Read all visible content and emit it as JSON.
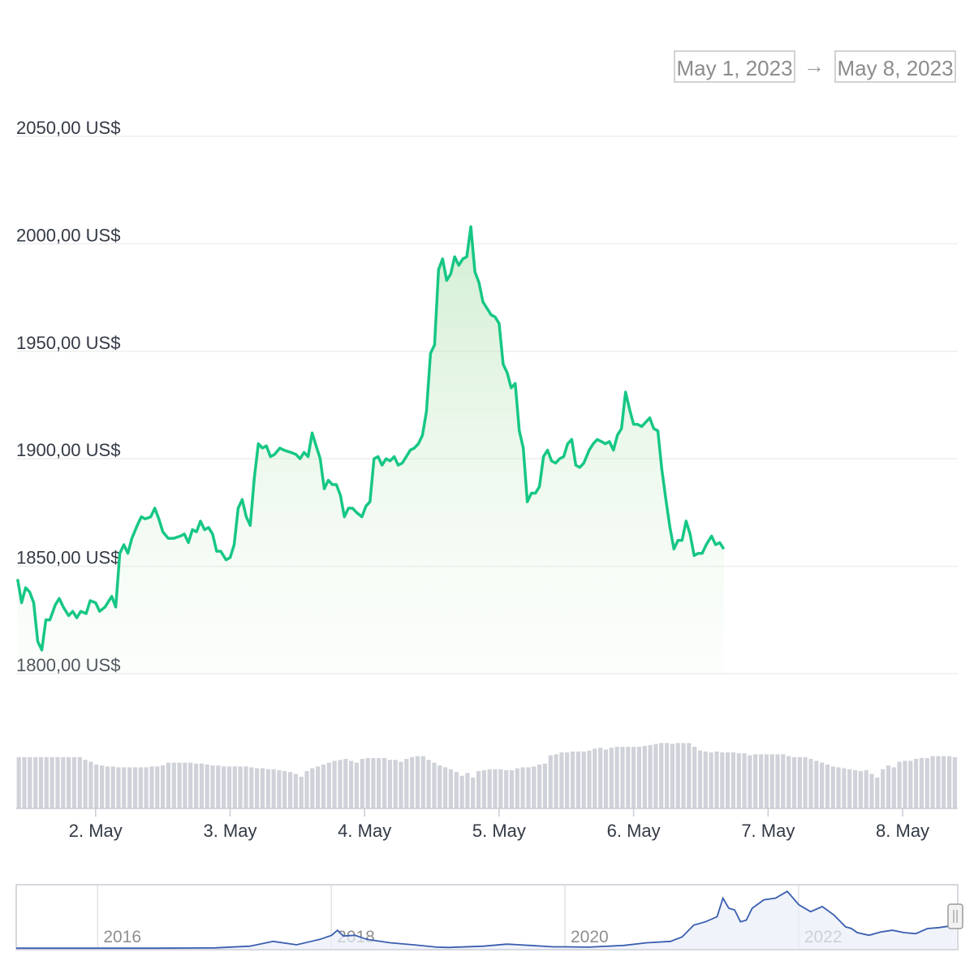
{
  "date_range": {
    "from": "May 1, 2023",
    "arrow": "→",
    "to": "May 8, 2023"
  },
  "colors": {
    "line": "#16c784",
    "fill": "#16c784",
    "volume": "#cfd2d8",
    "navigator": "#3a5eb0",
    "grid": "#eeeeee"
  },
  "chart_data": {
    "type": "area",
    "y_ticks": [
      "1800,00 US$",
      "1850,00 US$",
      "1900,00 US$",
      "1950,00 US$",
      "2000,00 US$",
      "2050,00 US$"
    ],
    "x_ticks": [
      "2. May",
      "3. May",
      "4. May",
      "5. May",
      "6. May",
      "7. May",
      "8. May"
    ],
    "ylim": [
      1800,
      2050
    ],
    "xlim_days": [
      1.41,
      8.41
    ],
    "grid": true,
    "price": [
      [
        1.42,
        1844
      ],
      [
        1.45,
        1833
      ],
      [
        1.48,
        1840
      ],
      [
        1.51,
        1838
      ],
      [
        1.54,
        1833
      ],
      [
        1.57,
        1815
      ],
      [
        1.6,
        1811
      ],
      [
        1.63,
        1825
      ],
      [
        1.66,
        1825
      ],
      [
        1.7,
        1832
      ],
      [
        1.73,
        1835
      ],
      [
        1.76,
        1831
      ],
      [
        1.8,
        1827
      ],
      [
        1.83,
        1829
      ],
      [
        1.86,
        1826
      ],
      [
        1.89,
        1829
      ],
      [
        1.93,
        1828
      ],
      [
        1.96,
        1834
      ],
      [
        2.0,
        1833
      ],
      [
        2.03,
        1829
      ],
      [
        2.07,
        1831
      ],
      [
        2.12,
        1836
      ],
      [
        2.15,
        1831
      ],
      [
        2.18,
        1856
      ],
      [
        2.21,
        1860
      ],
      [
        2.24,
        1856
      ],
      [
        2.27,
        1863
      ],
      [
        2.31,
        1869
      ],
      [
        2.34,
        1873
      ],
      [
        2.37,
        1872
      ],
      [
        2.41,
        1873
      ],
      [
        2.44,
        1877
      ],
      [
        2.47,
        1872
      ],
      [
        2.5,
        1866
      ],
      [
        2.54,
        1863
      ],
      [
        2.58,
        1863
      ],
      [
        2.63,
        1864
      ],
      [
        2.66,
        1865
      ],
      [
        2.69,
        1861
      ],
      [
        2.72,
        1867
      ],
      [
        2.75,
        1866
      ],
      [
        2.78,
        1871
      ],
      [
        2.81,
        1867
      ],
      [
        2.84,
        1868
      ],
      [
        2.87,
        1865
      ],
      [
        2.9,
        1857
      ],
      [
        2.93,
        1857
      ],
      [
        2.97,
        1853
      ],
      [
        3.0,
        1854
      ],
      [
        3.03,
        1860
      ],
      [
        3.06,
        1877
      ],
      [
        3.09,
        1881
      ],
      [
        3.12,
        1873
      ],
      [
        3.15,
        1869
      ],
      [
        3.18,
        1891
      ],
      [
        3.21,
        1907
      ],
      [
        3.24,
        1905
      ],
      [
        3.27,
        1906
      ],
      [
        3.3,
        1901
      ],
      [
        3.33,
        1902
      ],
      [
        3.37,
        1905
      ],
      [
        3.4,
        1904
      ],
      [
        3.45,
        1903
      ],
      [
        3.49,
        1902
      ],
      [
        3.52,
        1900
      ],
      [
        3.55,
        1903
      ],
      [
        3.58,
        1901
      ],
      [
        3.61,
        1912
      ],
      [
        3.64,
        1906
      ],
      [
        3.67,
        1900
      ],
      [
        3.7,
        1886
      ],
      [
        3.73,
        1890
      ],
      [
        3.76,
        1888
      ],
      [
        3.79,
        1888
      ],
      [
        3.82,
        1883
      ],
      [
        3.85,
        1873
      ],
      [
        3.88,
        1877
      ],
      [
        3.91,
        1877
      ],
      [
        3.94,
        1875
      ],
      [
        3.98,
        1873
      ],
      [
        4.01,
        1878
      ],
      [
        4.04,
        1880
      ],
      [
        4.07,
        1900
      ],
      [
        4.1,
        1901
      ],
      [
        4.13,
        1897
      ],
      [
        4.16,
        1900
      ],
      [
        4.19,
        1899
      ],
      [
        4.22,
        1901
      ],
      [
        4.25,
        1897
      ],
      [
        4.28,
        1898
      ],
      [
        4.31,
        1901
      ],
      [
        4.34,
        1904
      ],
      [
        4.37,
        1905
      ],
      [
        4.4,
        1907
      ],
      [
        4.43,
        1911
      ],
      [
        4.46,
        1922
      ],
      [
        4.49,
        1949
      ],
      [
        4.52,
        1953
      ],
      [
        4.55,
        1988
      ],
      [
        4.58,
        1993
      ],
      [
        4.61,
        1983
      ],
      [
        4.64,
        1986
      ],
      [
        4.67,
        1994
      ],
      [
        4.7,
        1990
      ],
      [
        4.73,
        1993
      ],
      [
        4.76,
        1994
      ],
      [
        4.79,
        2008
      ],
      [
        4.82,
        1987
      ],
      [
        4.85,
        1982
      ],
      [
        4.88,
        1973
      ],
      [
        4.91,
        1970
      ],
      [
        4.94,
        1967
      ],
      [
        4.97,
        1966
      ],
      [
        5.0,
        1963
      ],
      [
        5.03,
        1944
      ],
      [
        5.06,
        1940
      ],
      [
        5.09,
        1933
      ],
      [
        5.12,
        1935
      ],
      [
        5.15,
        1913
      ],
      [
        5.18,
        1905
      ],
      [
        5.21,
        1880
      ],
      [
        5.24,
        1884
      ],
      [
        5.27,
        1884
      ],
      [
        5.3,
        1887
      ],
      [
        5.33,
        1901
      ],
      [
        5.36,
        1904
      ],
      [
        5.39,
        1899
      ],
      [
        5.42,
        1898
      ],
      [
        5.45,
        1900
      ],
      [
        5.48,
        1901
      ],
      [
        5.51,
        1907
      ],
      [
        5.54,
        1909
      ],
      [
        5.57,
        1897
      ],
      [
        5.6,
        1896
      ],
      [
        5.63,
        1898
      ],
      [
        5.67,
        1904
      ],
      [
        5.7,
        1907
      ],
      [
        5.73,
        1909
      ],
      [
        5.76,
        1908
      ],
      [
        5.79,
        1907
      ],
      [
        5.82,
        1908
      ],
      [
        5.85,
        1904
      ],
      [
        5.88,
        1911
      ],
      [
        5.91,
        1914
      ],
      [
        5.94,
        1931
      ],
      [
        5.97,
        1923
      ],
      [
        6.0,
        1916
      ],
      [
        6.03,
        1916
      ],
      [
        6.06,
        1915
      ],
      [
        6.09,
        1917
      ],
      [
        6.12,
        1919
      ],
      [
        6.15,
        1914
      ],
      [
        6.18,
        1913
      ],
      [
        6.21,
        1895
      ],
      [
        6.24,
        1881
      ],
      [
        6.27,
        1868
      ],
      [
        6.3,
        1858
      ],
      [
        6.33,
        1862
      ],
      [
        6.36,
        1862
      ],
      [
        6.39,
        1871
      ],
      [
        6.42,
        1865
      ],
      [
        6.45,
        1855
      ],
      [
        6.48,
        1856
      ],
      [
        6.51,
        1856
      ],
      [
        6.54,
        1860
      ],
      [
        6.58,
        1864
      ],
      [
        6.61,
        1860
      ],
      [
        6.64,
        1861
      ],
      [
        6.67,
        1858
      ]
    ],
    "volume": [
      0.55,
      0.55,
      0.55,
      0.55,
      0.55,
      0.55,
      0.55,
      0.55,
      0.55,
      0.55,
      0.55,
      0.55,
      0.52,
      0.5,
      0.47,
      0.46,
      0.45,
      0.45,
      0.44,
      0.44,
      0.44,
      0.44,
      0.44,
      0.44,
      0.45,
      0.45,
      0.46,
      0.49,
      0.49,
      0.49,
      0.49,
      0.49,
      0.48,
      0.48,
      0.47,
      0.46,
      0.46,
      0.45,
      0.45,
      0.45,
      0.45,
      0.45,
      0.44,
      0.43,
      0.43,
      0.42,
      0.42,
      0.41,
      0.4,
      0.39,
      0.37,
      0.34,
      0.4,
      0.43,
      0.45,
      0.47,
      0.49,
      0.51,
      0.52,
      0.53,
      0.51,
      0.49,
      0.53,
      0.54,
      0.54,
      0.54,
      0.54,
      0.52,
      0.52,
      0.5,
      0.53,
      0.55,
      0.56,
      0.56,
      0.52,
      0.49,
      0.46,
      0.44,
      0.42,
      0.39,
      0.35,
      0.38,
      0.33,
      0.4,
      0.41,
      0.42,
      0.42,
      0.42,
      0.41,
      0.41,
      0.43,
      0.44,
      0.44,
      0.45,
      0.47,
      0.48,
      0.57,
      0.58,
      0.6,
      0.6,
      0.61,
      0.61,
      0.61,
      0.62,
      0.64,
      0.65,
      0.63,
      0.65,
      0.66,
      0.66,
      0.66,
      0.66,
      0.66,
      0.67,
      0.68,
      0.69,
      0.7,
      0.7,
      0.69,
      0.7,
      0.7,
      0.7,
      0.66,
      0.62,
      0.61,
      0.6,
      0.61,
      0.6,
      0.6,
      0.6,
      0.59,
      0.59,
      0.57,
      0.58,
      0.58,
      0.58,
      0.58,
      0.58,
      0.58,
      0.56,
      0.55,
      0.55,
      0.55,
      0.53,
      0.51,
      0.49,
      0.47,
      0.45,
      0.44,
      0.43,
      0.42,
      0.41,
      0.4,
      0.41,
      0.37,
      0.33,
      0.42,
      0.46,
      0.44,
      0.5,
      0.51,
      0.51,
      0.53,
      0.54,
      0.54,
      0.56,
      0.56,
      0.56,
      0.56,
      0.55
    ]
  },
  "navigator": {
    "labels": [
      "2016",
      "2018",
      "2020",
      "2022"
    ],
    "series": [
      [
        2015.3,
        2
      ],
      [
        2016.0,
        2
      ],
      [
        2016.5,
        2
      ],
      [
        2017.0,
        3
      ],
      [
        2017.3,
        8
      ],
      [
        2017.5,
        22
      ],
      [
        2017.7,
        12
      ],
      [
        2017.9,
        28
      ],
      [
        2018.0,
        40
      ],
      [
        2018.05,
        55
      ],
      [
        2018.1,
        38
      ],
      [
        2018.2,
        40
      ],
      [
        2018.3,
        28
      ],
      [
        2018.5,
        18
      ],
      [
        2018.7,
        12
      ],
      [
        2018.9,
        5
      ],
      [
        2019.0,
        4
      ],
      [
        2019.3,
        8
      ],
      [
        2019.5,
        14
      ],
      [
        2019.7,
        10
      ],
      [
        2019.9,
        6
      ],
      [
        2020.0,
        6
      ],
      [
        2020.2,
        5
      ],
      [
        2020.5,
        10
      ],
      [
        2020.7,
        18
      ],
      [
        2020.9,
        22
      ],
      [
        2021.0,
        35
      ],
      [
        2021.1,
        70
      ],
      [
        2021.2,
        80
      ],
      [
        2021.3,
        95
      ],
      [
        2021.35,
        150
      ],
      [
        2021.4,
        120
      ],
      [
        2021.45,
        115
      ],
      [
        2021.5,
        80
      ],
      [
        2021.55,
        85
      ],
      [
        2021.6,
        120
      ],
      [
        2021.7,
        145
      ],
      [
        2021.8,
        150
      ],
      [
        2021.9,
        170
      ],
      [
        2022.0,
        130
      ],
      [
        2022.1,
        110
      ],
      [
        2022.2,
        125
      ],
      [
        2022.3,
        100
      ],
      [
        2022.4,
        65
      ],
      [
        2022.45,
        60
      ],
      [
        2022.5,
        48
      ],
      [
        2022.6,
        40
      ],
      [
        2022.7,
        50
      ],
      [
        2022.8,
        55
      ],
      [
        2022.9,
        48
      ],
      [
        2023.0,
        45
      ],
      [
        2023.1,
        60
      ],
      [
        2023.2,
        63
      ],
      [
        2023.3,
        68
      ],
      [
        2023.35,
        70
      ]
    ]
  }
}
